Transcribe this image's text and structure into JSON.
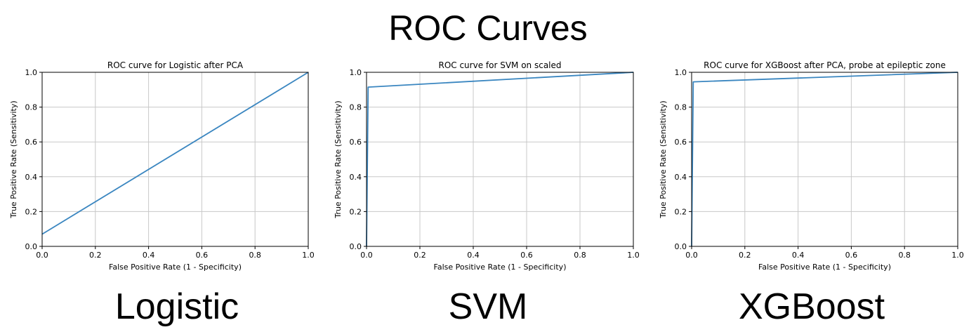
{
  "figure": {
    "title": "ROC Curves"
  },
  "captions": [
    "Logistic",
    "SVM",
    "XGBoost"
  ],
  "colors": {
    "line": "#3a86c0",
    "grid": "#c8c8c8",
    "axis": "#000000"
  },
  "chart_data": [
    {
      "type": "line",
      "title": "ROC curve for Logistic after PCA",
      "xlabel": "False Positive Rate (1 - Specificity)",
      "ylabel": "True Positive Rate (Sensitivity)",
      "xlim": [
        0,
        1
      ],
      "ylim": [
        0,
        1
      ],
      "xticks": [
        "0.0",
        "0.2",
        "0.4",
        "0.6",
        "0.8",
        "1.0"
      ],
      "yticks": [
        "0.0",
        "0.2",
        "0.4",
        "0.6",
        "0.8",
        "1.0"
      ],
      "grid": true,
      "x": [
        0.0,
        1.0
      ],
      "y": [
        0.07,
        1.0
      ]
    },
    {
      "type": "line",
      "title": "ROC curve for SVM on scaled",
      "xlabel": "False Positive Rate (1 - Specificity)",
      "ylabel": "True Positive Rate (Sensitivity)",
      "xlim": [
        0,
        1
      ],
      "ylim": [
        0,
        1
      ],
      "xticks": [
        "0.0",
        "0.2",
        "0.4",
        "0.6",
        "0.8",
        "1.0"
      ],
      "yticks": [
        "0.0",
        "0.2",
        "0.4",
        "0.6",
        "0.8",
        "1.0"
      ],
      "grid": true,
      "x": [
        0.0,
        0.006,
        1.0
      ],
      "y": [
        0.0,
        0.915,
        1.0
      ]
    },
    {
      "type": "line",
      "title": "ROC curve for XGBoost after PCA, probe at epileptic zone",
      "xlabel": "False Positive Rate (1 - Specificity)",
      "ylabel": "True Positive Rate (Sensitivity)",
      "xlim": [
        0,
        1
      ],
      "ylim": [
        0,
        1
      ],
      "xticks": [
        "0.0",
        "0.2",
        "0.4",
        "0.6",
        "0.8",
        "1.0"
      ],
      "yticks": [
        "0.0",
        "0.2",
        "0.4",
        "0.6",
        "0.8",
        "1.0"
      ],
      "grid": true,
      "x": [
        0.0,
        0.006,
        1.0
      ],
      "y": [
        0.0,
        0.945,
        1.0
      ]
    }
  ]
}
